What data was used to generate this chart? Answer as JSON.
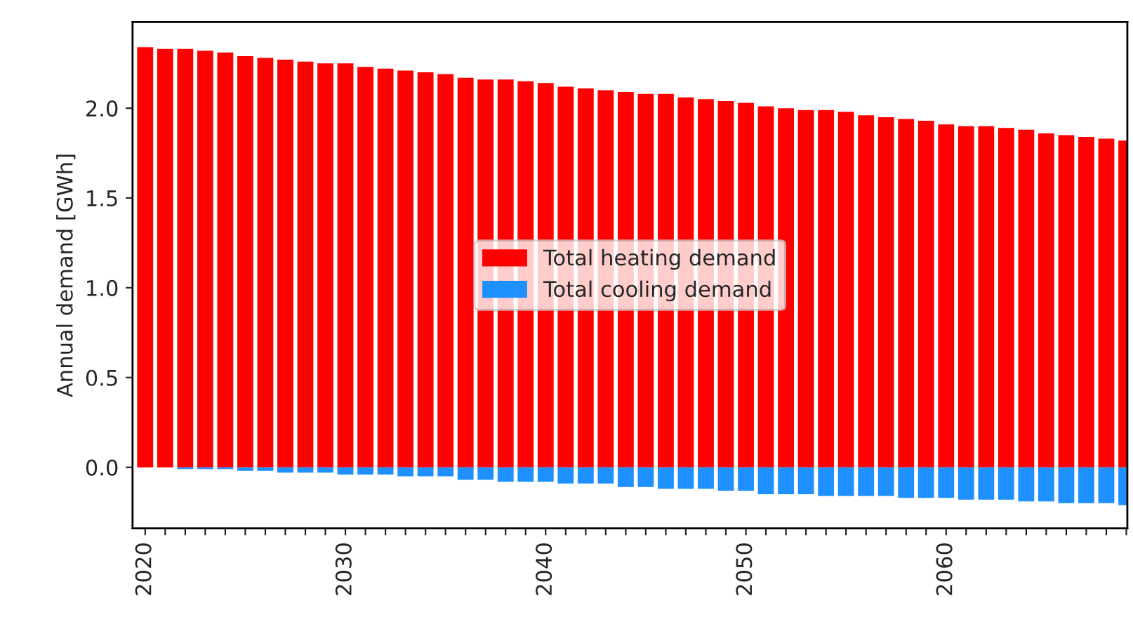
{
  "chart_data": {
    "type": "bar",
    "ylabel": "Annual demand [GWh]",
    "x": [
      2020,
      2021,
      2022,
      2023,
      2024,
      2025,
      2026,
      2027,
      2028,
      2029,
      2030,
      2031,
      2032,
      2033,
      2034,
      2035,
      2036,
      2037,
      2038,
      2039,
      2040,
      2041,
      2042,
      2043,
      2044,
      2045,
      2046,
      2047,
      2048,
      2049,
      2050,
      2051,
      2052,
      2053,
      2054,
      2055,
      2056,
      2057,
      2058,
      2059,
      2060,
      2061,
      2062,
      2063,
      2064,
      2065,
      2066,
      2067,
      2068,
      2069
    ],
    "series": [
      {
        "name": "Total heating demand",
        "color": "#ff0000",
        "values": [
          2.34,
          2.33,
          2.33,
          2.32,
          2.31,
          2.29,
          2.28,
          2.27,
          2.26,
          2.25,
          2.25,
          2.23,
          2.22,
          2.21,
          2.2,
          2.19,
          2.17,
          2.16,
          2.16,
          2.15,
          2.14,
          2.12,
          2.11,
          2.1,
          2.09,
          2.08,
          2.08,
          2.06,
          2.05,
          2.04,
          2.03,
          2.01,
          2.0,
          1.99,
          1.99,
          1.98,
          1.96,
          1.95,
          1.94,
          1.93,
          1.91,
          1.9,
          1.9,
          1.89,
          1.88,
          1.86,
          1.85,
          1.84,
          1.83,
          1.82
        ]
      },
      {
        "name": "Total cooling demand",
        "color": "#1e90ff",
        "values": [
          0,
          0,
          -0.01,
          -0.01,
          -0.01,
          -0.02,
          -0.02,
          -0.03,
          -0.03,
          -0.03,
          -0.04,
          -0.04,
          -0.04,
          -0.05,
          -0.05,
          -0.05,
          -0.07,
          -0.07,
          -0.08,
          -0.08,
          -0.08,
          -0.09,
          -0.09,
          -0.09,
          -0.11,
          -0.11,
          -0.12,
          -0.12,
          -0.12,
          -0.13,
          -0.13,
          -0.15,
          -0.15,
          -0.15,
          -0.16,
          -0.16,
          -0.16,
          -0.16,
          -0.17,
          -0.17,
          -0.17,
          -0.18,
          -0.18,
          -0.18,
          -0.19,
          -0.19,
          -0.2,
          -0.2,
          -0.2,
          -0.21
        ]
      }
    ],
    "xlim": [
      2019.37,
      2069.05
    ],
    "xticks": [
      2020,
      {
        "value": 2021,
        "label": null
      },
      {
        "value": 2022,
        "label": null
      },
      {
        "value": 2023,
        "label": null
      },
      {
        "value": 2024,
        "label": null
      },
      {
        "value": 2025,
        "label": null
      },
      {
        "value": 2026,
        "label": null
      },
      {
        "value": 2027,
        "label": null
      },
      {
        "value": 2028,
        "label": null
      },
      {
        "value": 2029,
        "label": null
      },
      2030,
      {
        "value": 2031,
        "label": null
      },
      {
        "value": 2032,
        "label": null
      },
      {
        "value": 2033,
        "label": null
      },
      {
        "value": 2034,
        "label": null
      },
      {
        "value": 2035,
        "label": null
      },
      {
        "value": 2036,
        "label": null
      },
      {
        "value": 2037,
        "label": null
      },
      {
        "value": 2038,
        "label": null
      },
      {
        "value": 2039,
        "label": null
      },
      2040,
      {
        "value": 2041,
        "label": null
      },
      {
        "value": 2042,
        "label": null
      },
      {
        "value": 2043,
        "label": null
      },
      {
        "value": 2044,
        "label": null
      },
      {
        "value": 2045,
        "label": null
      },
      {
        "value": 2046,
        "label": null
      },
      {
        "value": 2047,
        "label": null
      },
      {
        "value": 2048,
        "label": null
      },
      {
        "value": 2049,
        "label": null
      },
      2050,
      {
        "value": 2051,
        "label": null
      },
      {
        "value": 2052,
        "label": null
      },
      {
        "value": 2053,
        "label": null
      },
      {
        "value": 2054,
        "label": null
      },
      {
        "value": 2055,
        "label": null
      },
      {
        "value": 2056,
        "label": null
      },
      {
        "value": 2057,
        "label": null
      },
      {
        "value": 2058,
        "label": null
      },
      {
        "value": 2059,
        "label": null
      },
      2060,
      {
        "value": 2061,
        "label": null
      },
      {
        "value": 2062,
        "label": null
      },
      {
        "value": 2063,
        "label": null
      },
      {
        "value": 2064,
        "label": null
      },
      {
        "value": 2065,
        "label": null
      },
      {
        "value": 2066,
        "label": null
      },
      {
        "value": 2067,
        "label": null
      },
      {
        "value": 2068,
        "label": null
      },
      {
        "value": 2069,
        "label": null
      }
    ],
    "ylim": [
      -0.34,
      2.48
    ],
    "yticks": [
      {
        "value": 0,
        "label": "0.0"
      },
      {
        "value": 0.5,
        "label": "0.5"
      },
      {
        "value": 1,
        "label": "1.0"
      },
      {
        "value": 1.5,
        "label": "1.5"
      },
      {
        "value": 2,
        "label": "2.0"
      }
    ],
    "stacked": true,
    "grid": false,
    "legend": "center"
  }
}
